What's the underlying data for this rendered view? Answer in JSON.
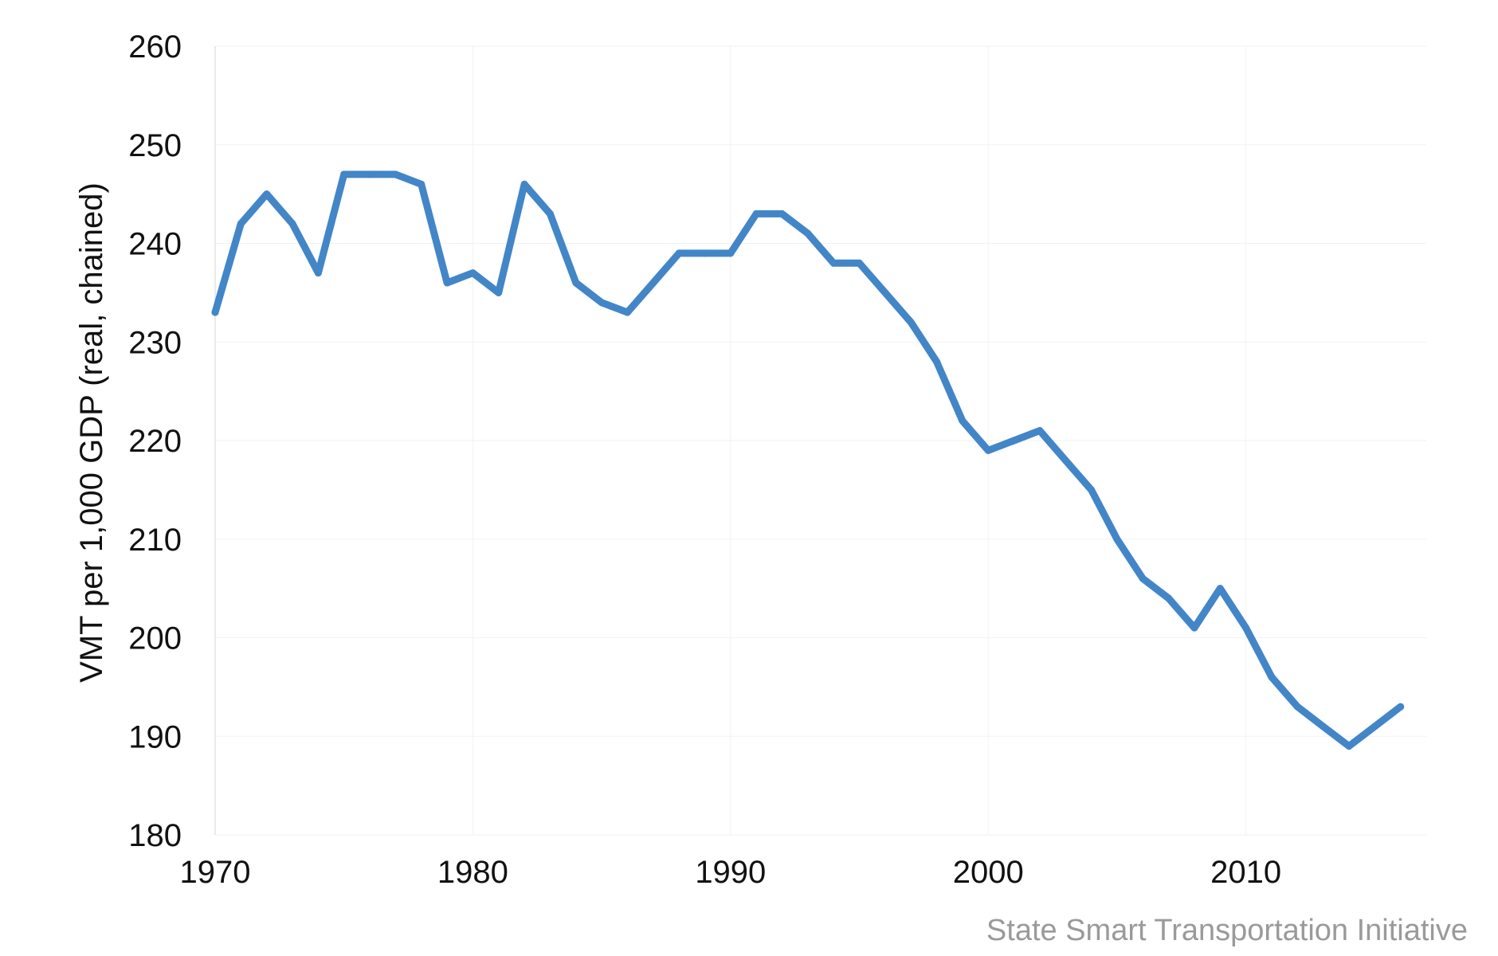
{
  "chart_data": {
    "type": "line",
    "title": "",
    "xlabel": "",
    "ylabel": "VMT per 1,000 GDP (real, chained)",
    "xlim": [
      1970,
      2017
    ],
    "ylim": [
      180,
      260
    ],
    "x_ticks": [
      1970,
      1980,
      1990,
      2000,
      2010
    ],
    "y_ticks": [
      180,
      190,
      200,
      210,
      220,
      230,
      240,
      250,
      260
    ],
    "grid": false,
    "line_color": "#4286C8",
    "series": [
      {
        "x": [
          1970,
          1971,
          1972,
          1973,
          1974,
          1975,
          1976,
          1977,
          1978,
          1979,
          1980,
          1981,
          1982,
          1983,
          1984,
          1985,
          1986,
          1987,
          1988,
          1989,
          1990,
          1991,
          1992,
          1993,
          1994,
          1995,
          1996,
          1997,
          1998,
          1999,
          2000,
          2001,
          2002,
          2003,
          2004,
          2005,
          2006,
          2007,
          2008,
          2009,
          2010,
          2011,
          2012,
          2013,
          2014,
          2015,
          2016
        ],
        "values": [
          233,
          242,
          245,
          242,
          237,
          247,
          247,
          247,
          246,
          236,
          237,
          235,
          246,
          243,
          236,
          234,
          233,
          236,
          239,
          239,
          239,
          243,
          243,
          241,
          238,
          238,
          235,
          232,
          228,
          222,
          219,
          220,
          221,
          218,
          215,
          210,
          206,
          204,
          201,
          205,
          201,
          196,
          193,
          191,
          189,
          191,
          193
        ]
      }
    ],
    "source_note": "State Smart Transportation Initiative"
  }
}
